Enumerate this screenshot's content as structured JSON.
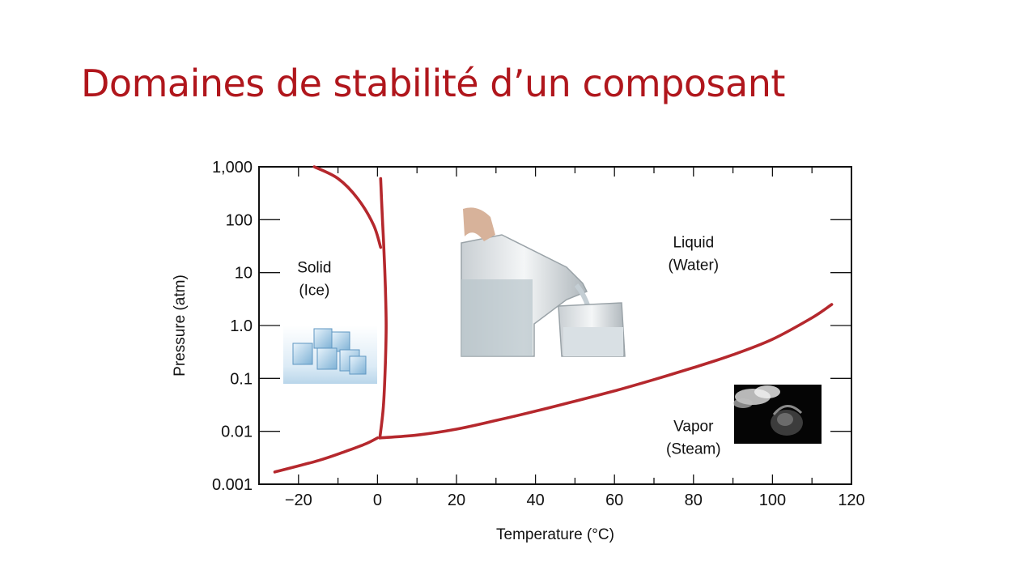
{
  "slide": {
    "title": "Domaines de stabilité d’un composant"
  },
  "chart_data": {
    "type": "line",
    "xlabel": "Temperature (°C)",
    "ylabel": "Pressure (atm)",
    "xlim": [
      -30,
      120
    ],
    "ylim": [
      0.001,
      1000
    ],
    "yscale": "log",
    "x_ticks": [
      -20,
      0,
      20,
      40,
      60,
      80,
      100,
      120
    ],
    "x_tick_labels": [
      "−20",
      "0",
      "20",
      "40",
      "60",
      "80",
      "100",
      "120"
    ],
    "y_ticks": [
      0.001,
      0.01,
      0.1,
      1,
      10,
      100,
      1000
    ],
    "y_tick_labels": [
      "0.001",
      "0.01",
      "0.1",
      "1.0",
      "10",
      "100",
      "1,000"
    ],
    "grid": false,
    "line_color": "#b5282d",
    "series": [
      {
        "x": [
          -26,
          -15,
          -8,
          -3,
          0
        ],
        "y": [
          0.0017,
          0.0028,
          0.0042,
          0.0058,
          0.0075
        ]
      },
      {
        "x": [
          0.6,
          1.5,
          2.0,
          2.2,
          2.0,
          1.6,
          1.2,
          0.8
        ],
        "y": [
          0.0075,
          0.03,
          0.2,
          1,
          5,
          30,
          120,
          600
        ]
      },
      {
        "x": [
          -16,
          -10,
          -5,
          -1,
          0.8
        ],
        "y": [
          1000,
          600,
          250,
          80,
          30
        ]
      },
      {
        "x": [
          0.6,
          10,
          20,
          30,
          40,
          50,
          60,
          70,
          80,
          90,
          100,
          110,
          115
        ],
        "y": [
          0.0075,
          0.0085,
          0.011,
          0.016,
          0.024,
          0.037,
          0.058,
          0.095,
          0.16,
          0.28,
          0.55,
          1.4,
          2.5
        ]
      }
    ],
    "regions": [
      {
        "lines": [
          "Solid",
          "(Ice)"
        ],
        "x": -16,
        "y": 10,
        "picture": "ice-cubes"
      },
      {
        "lines": [
          "Liquid",
          "(Water)"
        ],
        "x": 80,
        "y": 30,
        "picture": "water-pouring"
      },
      {
        "lines": [
          "Vapor",
          "(Steam)"
        ],
        "x": 80,
        "y": 0.01,
        "picture": "steaming-kettle"
      }
    ]
  }
}
